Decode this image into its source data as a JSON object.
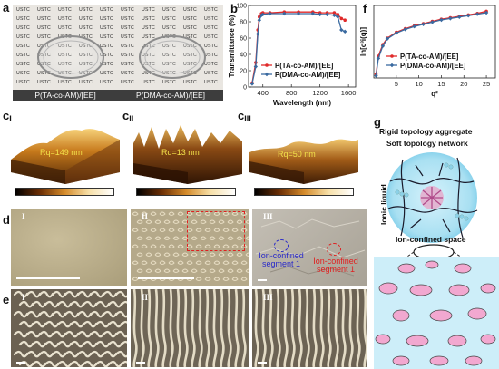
{
  "panels": {
    "a": {
      "label": "a",
      "ustc_text": "USTC",
      "caption_left": "P(TA-co-AM)/[EE]",
      "caption_right": "P(DMA-co-AM)/[EE]"
    },
    "b": {
      "label": "b"
    },
    "c": {
      "label": "c",
      "subs": [
        "I",
        "II",
        "III"
      ],
      "rq": [
        "Rq=149 nm",
        "Rq=13 nm",
        "Rq=50 nm"
      ]
    },
    "d": {
      "label": "d",
      "subs": [
        "I",
        "II",
        "III"
      ],
      "ion_text_1": "Ion-confined\nsegment 1",
      "ion_text_2": "Ion-confined\nsegment 1"
    },
    "e": {
      "label": "e",
      "subs": [
        "I",
        "II",
        "III"
      ]
    },
    "f": {
      "label": "f"
    },
    "g": {
      "label": "g",
      "rigid": "Rigid topology aggregate",
      "soft": "Soft topology network",
      "ionic": "Ionic liquid",
      "space": "Ion-confined space"
    }
  },
  "chart_data": [
    {
      "type": "line",
      "panel": "b",
      "xlabel": "Wavelength (nm)",
      "ylabel": "Transmittance (%)",
      "xlim": [
        200,
        1700
      ],
      "ylim": [
        0,
        100
      ],
      "xticks": [
        400,
        800,
        1200,
        1600
      ],
      "yticks": [
        0,
        20,
        40,
        60,
        80,
        100
      ],
      "series": [
        {
          "name": "P(TA-co-AM)/[EE]",
          "color": "#e02a2a",
          "x": [
            250,
            300,
            330,
            350,
            380,
            400,
            500,
            700,
            900,
            1100,
            1200,
            1300,
            1400,
            1450,
            1500,
            1550
          ],
          "y": [
            5,
            30,
            70,
            86,
            90,
            91,
            91,
            92,
            92,
            92,
            91,
            91,
            91,
            89,
            84,
            82
          ]
        },
        {
          "name": "P(DMA-co-AM)/[EE]",
          "color": "#3a6aa0",
          "x": [
            250,
            300,
            330,
            350,
            380,
            400,
            500,
            700,
            900,
            1100,
            1200,
            1300,
            1400,
            1450,
            1500,
            1550
          ],
          "y": [
            4,
            25,
            65,
            82,
            88,
            89,
            90,
            90,
            90,
            90,
            89,
            89,
            88,
            86,
            70,
            68
          ]
        }
      ]
    },
    {
      "type": "line",
      "panel": "f",
      "xlabel": "q²",
      "ylabel": "ln[c³i(q)]",
      "xlim": [
        0,
        27
      ],
      "xticks": [
        5,
        10,
        15,
        20,
        25
      ],
      "series": [
        {
          "name": "P(TA-co-AM)/[EE]",
          "color": "#e02a2a",
          "x": [
            0.5,
            1,
            2,
            3,
            5,
            7,
            9,
            11,
            13,
            15,
            17,
            19,
            21,
            23,
            25
          ],
          "y": [
            0.05,
            0.3,
            0.46,
            0.55,
            0.63,
            0.68,
            0.72,
            0.75,
            0.78,
            0.81,
            0.83,
            0.85,
            0.87,
            0.89,
            0.92
          ]
        },
        {
          "name": "P(DMA-co-AM)/[EE]",
          "color": "#3a6aa0",
          "x": [
            0.5,
            1,
            2,
            3,
            5,
            7,
            9,
            11,
            13,
            15,
            17,
            19,
            21,
            23,
            25
          ],
          "y": [
            0.03,
            0.27,
            0.44,
            0.54,
            0.62,
            0.67,
            0.71,
            0.74,
            0.77,
            0.8,
            0.82,
            0.84,
            0.86,
            0.88,
            0.9
          ]
        }
      ]
    }
  ]
}
